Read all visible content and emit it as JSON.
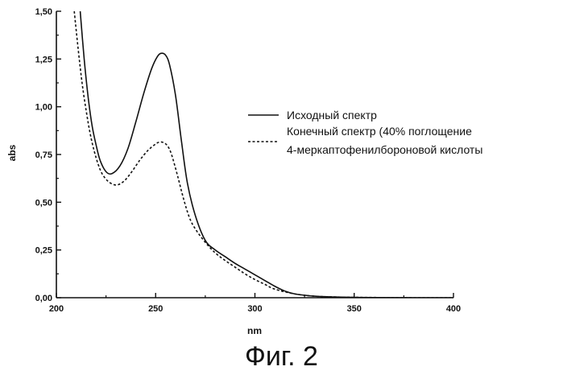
{
  "figure_caption": "Фиг. 2",
  "chart_data": {
    "type": "line",
    "xlabel": "nm",
    "ylabel": "abs",
    "xlim": [
      200,
      400
    ],
    "ylim": [
      0,
      1.5
    ],
    "x_ticks": [
      200,
      250,
      300,
      350,
      400
    ],
    "x_tick_labels": [
      "200",
      "250",
      "300",
      "350",
      "400"
    ],
    "y_ticks": [
      0,
      0.25,
      0.5,
      0.75,
      1.0,
      1.25,
      1.5
    ],
    "y_tick_labels": [
      "0,00",
      "0,25",
      "0,50",
      "0,75",
      "1,00",
      "1,25",
      "1,50"
    ],
    "grid": false,
    "legend_position": "right",
    "series": [
      {
        "name": "Исходный спектр",
        "style": "solid",
        "color": "#111111",
        "x": [
          212,
          214,
          216,
          218,
          220,
          222,
          225,
          228,
          232,
          236,
          240,
          244,
          248,
          251,
          253,
          255,
          257,
          260,
          263,
          266,
          270,
          275,
          280,
          285,
          290,
          295,
          300,
          305,
          310,
          315,
          320,
          330,
          340,
          350,
          360,
          380,
          400
        ],
        "y": [
          1.5,
          1.25,
          1.05,
          0.9,
          0.8,
          0.72,
          0.66,
          0.65,
          0.69,
          0.78,
          0.92,
          1.07,
          1.2,
          1.265,
          1.28,
          1.27,
          1.22,
          1.06,
          0.82,
          0.6,
          0.43,
          0.3,
          0.25,
          0.215,
          0.18,
          0.15,
          0.12,
          0.09,
          0.06,
          0.035,
          0.02,
          0.008,
          0.004,
          0.002,
          0.001,
          0.0,
          0.0
        ]
      },
      {
        "name": "Конечный спектр (40% поглощение 4-меркаптофенилбороновой кислоты",
        "style": "dashed",
        "color": "#111111",
        "x": [
          209,
          211,
          213,
          215,
          217,
          219,
          221,
          223,
          226,
          230,
          234,
          238,
          242,
          246,
          250,
          252,
          254,
          256,
          258,
          261,
          264,
          267,
          270,
          275,
          280,
          285,
          290,
          295,
          300,
          305,
          310,
          320,
          330,
          340,
          350,
          380,
          400
        ],
        "y": [
          1.5,
          1.3,
          1.12,
          0.98,
          0.86,
          0.77,
          0.7,
          0.65,
          0.61,
          0.59,
          0.61,
          0.66,
          0.72,
          0.77,
          0.805,
          0.815,
          0.812,
          0.795,
          0.75,
          0.64,
          0.52,
          0.42,
          0.36,
          0.29,
          0.235,
          0.195,
          0.16,
          0.125,
          0.095,
          0.07,
          0.045,
          0.02,
          0.008,
          0.004,
          0.002,
          0.0,
          0.0
        ]
      }
    ]
  }
}
